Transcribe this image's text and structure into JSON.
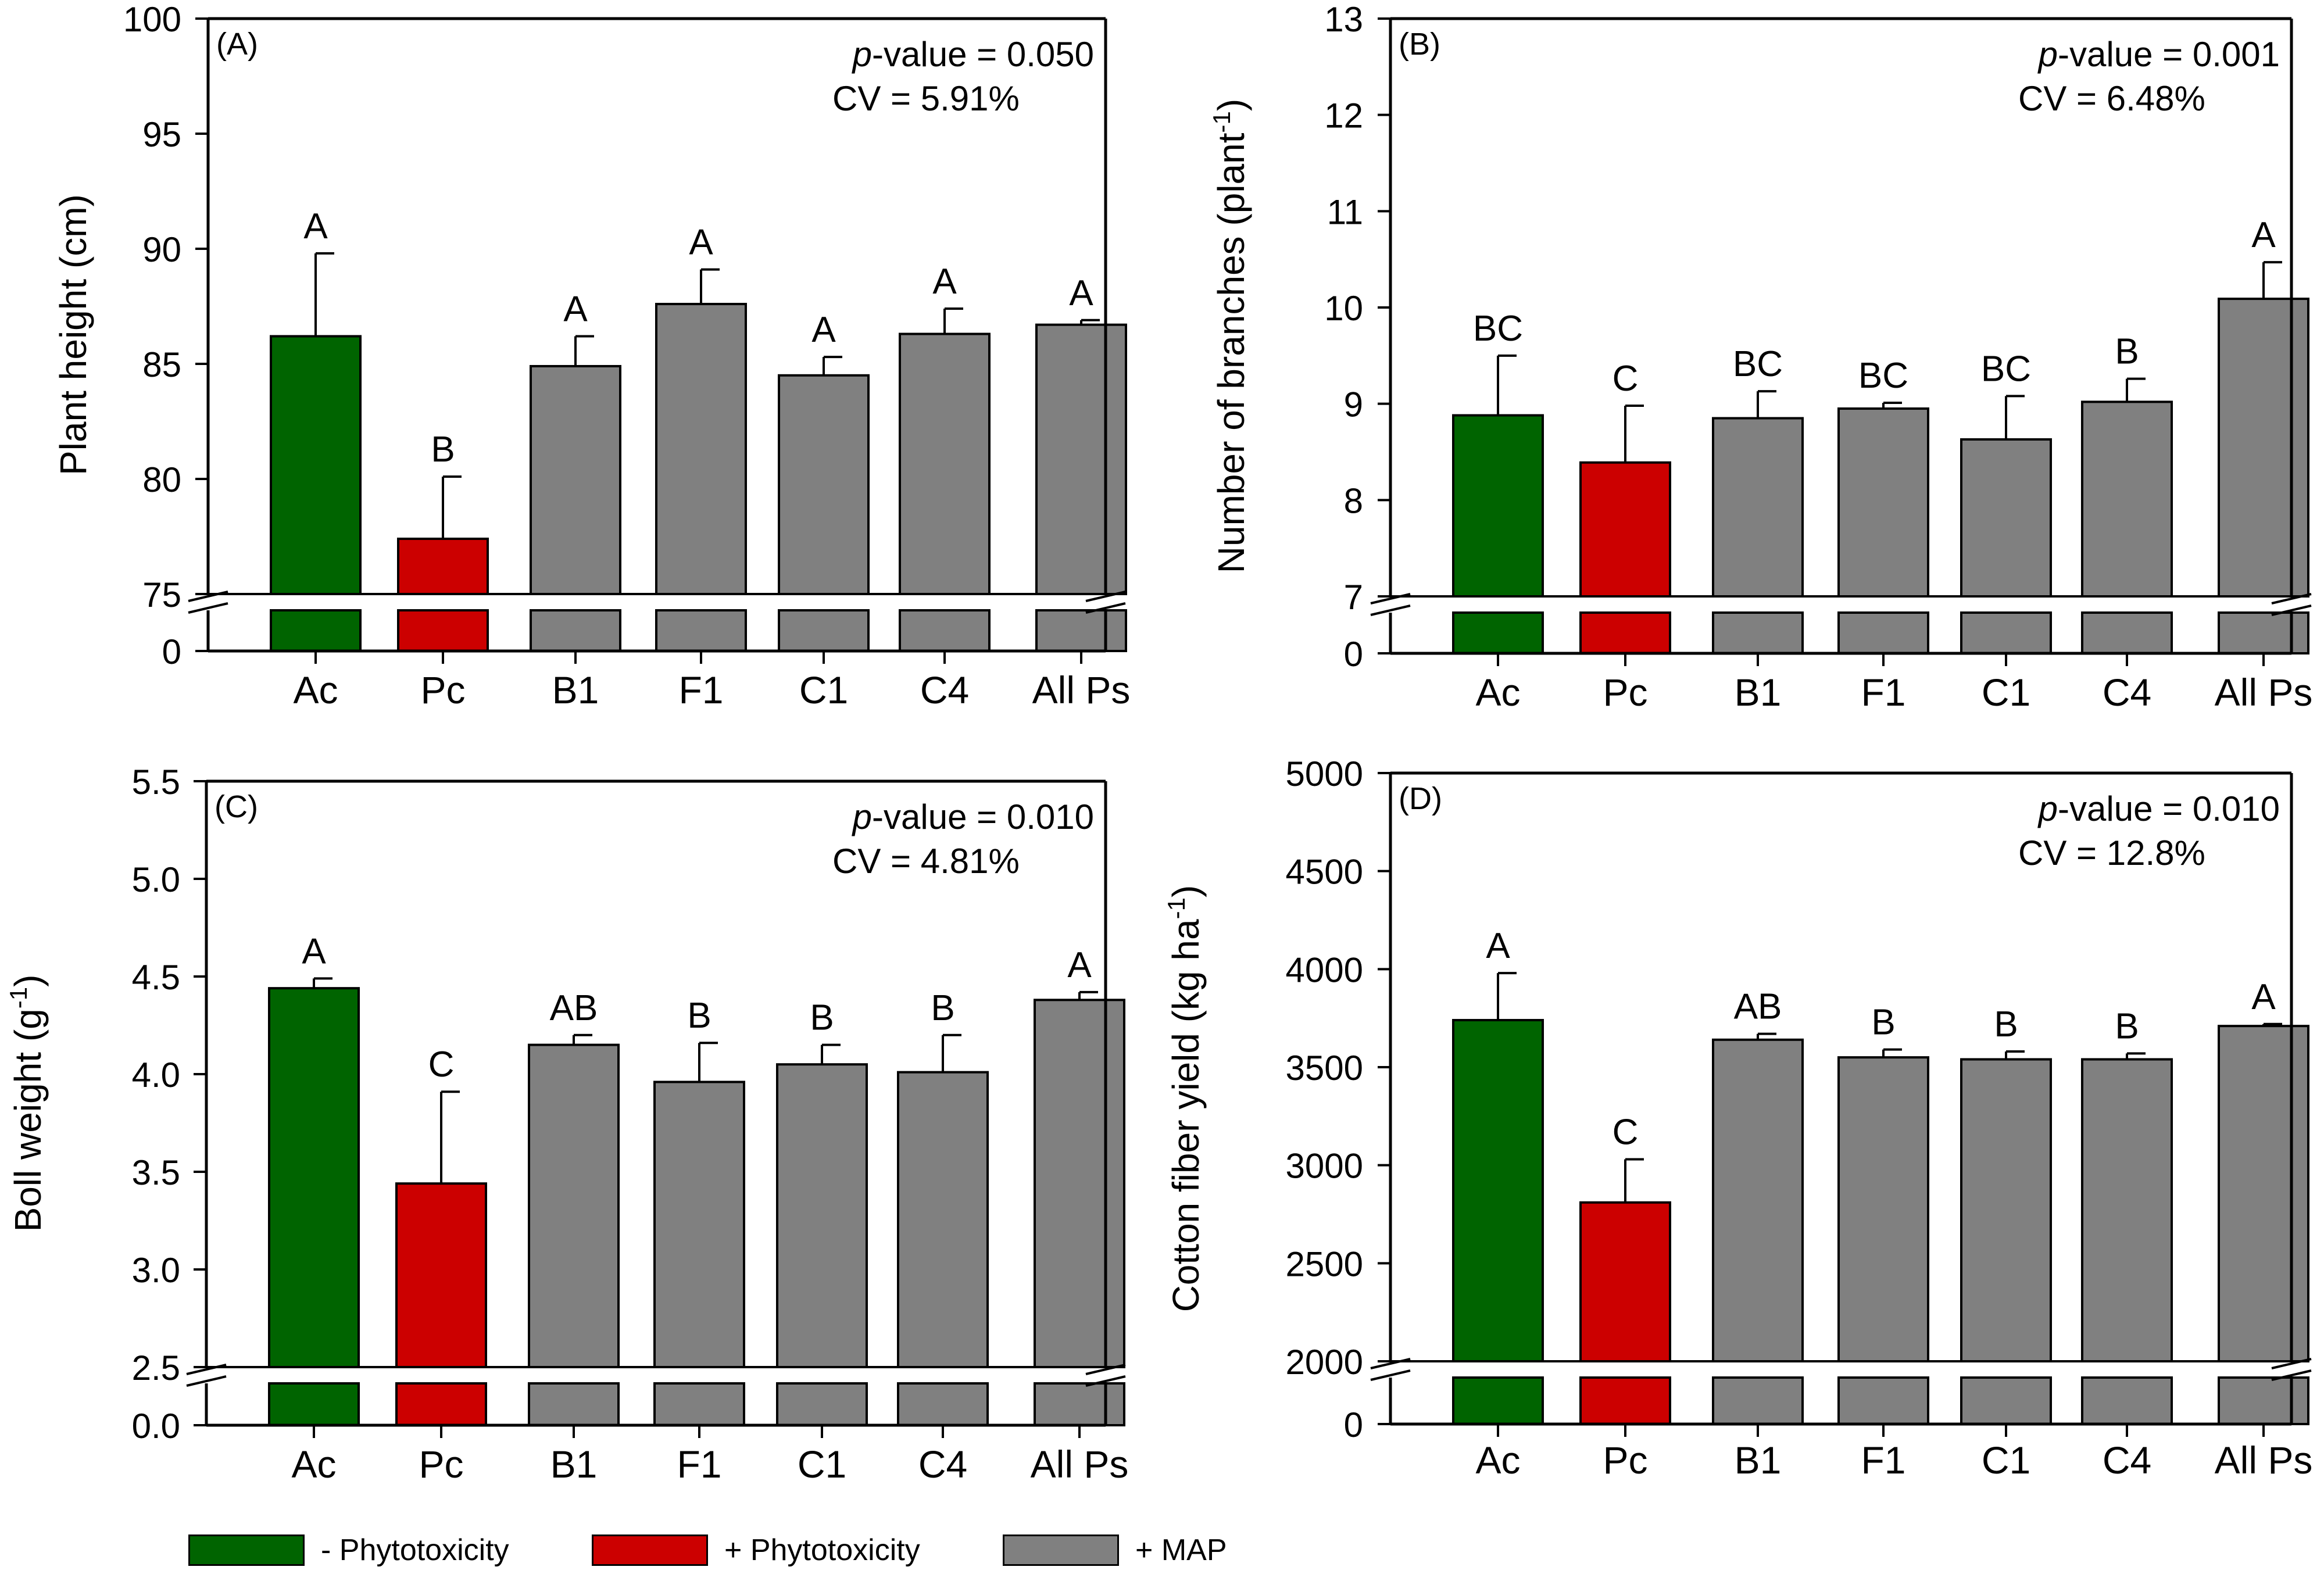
{
  "colors": {
    "control": "#006400",
    "phyto": "#cc0000",
    "map": "#808080"
  },
  "legend": [
    {
      "label": "- Phytotoxicity",
      "color": "#006400"
    },
    {
      "label": "+ Phytotoxicity",
      "color": "#cc0000"
    },
    {
      "label": "+ MAP",
      "color": "#808080"
    }
  ],
  "chart_data": [
    {
      "panel": "(A)",
      "type": "bar",
      "ylabel": "Plant height (cm)",
      "ylabel_sup": "",
      "ylim_upper": [
        75,
        100
      ],
      "yticks_upper": [
        "75",
        "80",
        "85",
        "90",
        "95",
        "100"
      ],
      "ybreak_label": "0",
      "categories": [
        "Ac",
        "Pc",
        "B1",
        "F1",
        "C1",
        "C4",
        "All Ps"
      ],
      "values": [
        86.2,
        77.4,
        84.9,
        87.6,
        84.5,
        86.3,
        86.7
      ],
      "errors": [
        3.6,
        2.7,
        1.3,
        1.5,
        0.8,
        1.1,
        0.2
      ],
      "letters": [
        "A",
        "B",
        "A",
        "A",
        "A",
        "A",
        "A"
      ],
      "bar_colors": [
        "control",
        "phyto",
        "map",
        "map",
        "map",
        "map",
        "map"
      ],
      "pvalue_prefix": "p",
      "pvalue_text": "-value = 0.050",
      "cv_text": "CV = 5.91%"
    },
    {
      "panel": "(B)",
      "type": "bar",
      "ylabel": "Number of branches (plant",
      "ylabel_sup": "-1",
      "ylabel_suffix": ")",
      "ylim_upper": [
        7,
        13
      ],
      "yticks_upper": [
        "7",
        "8",
        "9",
        "10",
        "11",
        "12",
        "13"
      ],
      "ybreak_label": "0",
      "categories": [
        "Ac",
        "Pc",
        "B1",
        "F1",
        "C1",
        "C4",
        "All Ps"
      ],
      "values": [
        8.88,
        8.39,
        8.85,
        8.95,
        8.63,
        9.02,
        10.09
      ],
      "errors": [
        0.62,
        0.59,
        0.28,
        0.06,
        0.45,
        0.24,
        0.38
      ],
      "letters": [
        "BC",
        "C",
        "BC",
        "BC",
        "BC",
        "B",
        "A"
      ],
      "bar_colors": [
        "control",
        "phyto",
        "map",
        "map",
        "map",
        "map",
        "map"
      ],
      "pvalue_prefix": "p",
      "pvalue_text": "-value = 0.001",
      "cv_text": "CV = 6.48%"
    },
    {
      "panel": "(C)",
      "type": "bar",
      "ylabel": "Boll weight (g",
      "ylabel_sup": "-1",
      "ylabel_suffix": ")",
      "ylim_upper": [
        2.5,
        5.5
      ],
      "yticks_upper": [
        "2.5",
        "3.0",
        "3.5",
        "4.0",
        "4.5",
        "5.0",
        "5.5"
      ],
      "ybreak_label": "0.0",
      "categories": [
        "Ac",
        "Pc",
        "B1",
        "F1",
        "C1",
        "C4",
        "All Ps"
      ],
      "values": [
        4.44,
        3.44,
        4.15,
        3.96,
        4.05,
        4.01,
        4.38
      ],
      "errors": [
        0.05,
        0.47,
        0.05,
        0.2,
        0.1,
        0.19,
        0.04
      ],
      "letters": [
        "A",
        "C",
        "AB",
        "B",
        "B",
        "B",
        "A"
      ],
      "bar_colors": [
        "control",
        "phyto",
        "map",
        "map",
        "map",
        "map",
        "map"
      ],
      "pvalue_prefix": "p",
      "pvalue_text": "-value = 0.010",
      "cv_text": "CV = 4.81%"
    },
    {
      "panel": "(D)",
      "type": "bar",
      "ylabel": "Cotton fiber yield (kg ha",
      "ylabel_sup": "-1",
      "ylabel_suffix": ")",
      "ylim_upper": [
        2000,
        5000
      ],
      "yticks_upper": [
        "2000",
        "2500",
        "3000",
        "3500",
        "4000",
        "4500",
        "5000"
      ],
      "ybreak_label": "0",
      "categories": [
        "Ac",
        "Pc",
        "B1",
        "F1",
        "C1",
        "C4",
        "All Ps"
      ],
      "values": [
        3740,
        2810,
        3640,
        3550,
        3540,
        3540,
        3710
      ],
      "errors": [
        240,
        220,
        30,
        40,
        40,
        30,
        10
      ],
      "letters": [
        "A",
        "C",
        "AB",
        "B",
        "B",
        "B",
        "A"
      ],
      "bar_colors": [
        "control",
        "phyto",
        "map",
        "map",
        "map",
        "map",
        "map"
      ],
      "pvalue_prefix": "p",
      "pvalue_text": "-value = 0.010",
      "cv_text": "CV = 12.8%"
    }
  ]
}
